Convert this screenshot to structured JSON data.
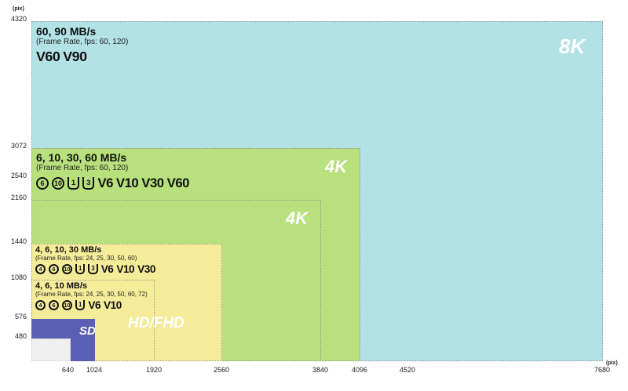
{
  "axis": {
    "x_unit": "(pix)",
    "y_unit": "(pix)",
    "x_ticks": [
      "640",
      "1024",
      "1920",
      "2560",
      "3840",
      "4096",
      "4520",
      "7680"
    ],
    "y_ticks": [
      "4320",
      "3072",
      "2540",
      "2160",
      "1440",
      "1080",
      "576",
      "480"
    ]
  },
  "regions": {
    "r8k": {
      "label": "8K",
      "color": "#b2e2e6",
      "speeds": "60, 90 MB/s",
      "fps": "(Frame Rate, fps: 60, 120)",
      "icons": [
        {
          "type": "v",
          "text": "V60"
        },
        {
          "type": "v",
          "text": "V90"
        }
      ]
    },
    "r4k": {
      "label": "4K",
      "label2": "4K",
      "color": "#b8e07c",
      "speeds": "6, 10, 30, 60 MB/s",
      "fps": "(Frame Rate, fps: 60, 120)",
      "icons": [
        {
          "type": "c",
          "text": "6"
        },
        {
          "type": "c",
          "text": "10"
        },
        {
          "type": "u",
          "text": "1"
        },
        {
          "type": "u",
          "text": "3"
        },
        {
          "type": "v",
          "text": "V6"
        },
        {
          "type": "v",
          "text": "V10"
        },
        {
          "type": "v",
          "text": "V30"
        },
        {
          "type": "v",
          "text": "V60"
        }
      ]
    },
    "rhd": {
      "label": "HD/FHD",
      "color": "#f5ec9a",
      "speeds": "4, 6, 10, 30 MB/s",
      "fps": "(Frame Rate, fps: 24, 25, 30, 50, 60)",
      "icons": [
        {
          "type": "c",
          "text": "4"
        },
        {
          "type": "c",
          "text": "6"
        },
        {
          "type": "c",
          "text": "10"
        },
        {
          "type": "u",
          "text": "1"
        },
        {
          "type": "u",
          "text": "3"
        },
        {
          "type": "v",
          "text": "V6"
        },
        {
          "type": "v",
          "text": "V10"
        },
        {
          "type": "v",
          "text": "V30"
        }
      ]
    },
    "rfhd": {
      "speeds": "4, 6, 10 MB/s",
      "fps": "(Frame Rate, fps: 24, 25, 30, 50, 60, 72)",
      "icons": [
        {
          "type": "c",
          "text": "4"
        },
        {
          "type": "c",
          "text": "6"
        },
        {
          "type": "c",
          "text": "10"
        },
        {
          "type": "u",
          "text": "1"
        },
        {
          "type": "v",
          "text": "V6"
        },
        {
          "type": "v",
          "text": "V10"
        }
      ]
    },
    "rsd": {
      "label": "SD",
      "color": "#5a5fb5"
    },
    "rvga": {
      "color": "#efefef"
    }
  }
}
